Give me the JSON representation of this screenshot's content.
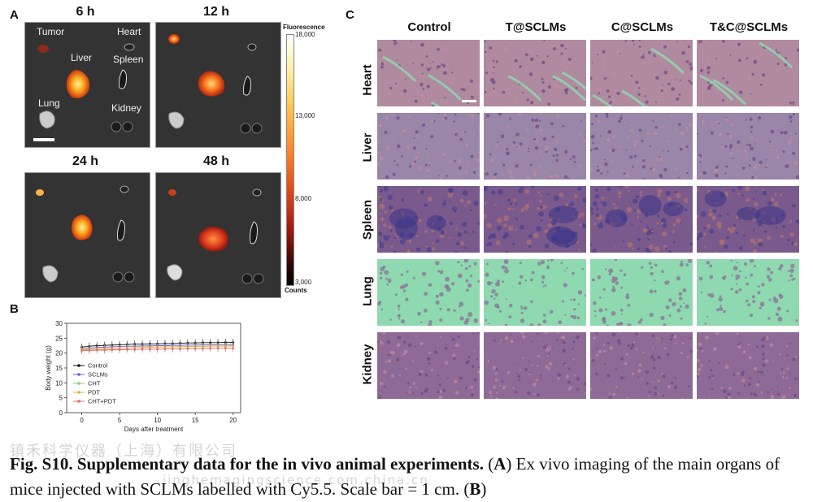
{
  "panel_a": {
    "letter": "A",
    "time_labels": [
      "6 h",
      "12 h",
      "24 h",
      "48 h"
    ],
    "organ_labels": {
      "tumor": "Tumor",
      "heart": "Heart",
      "liver": "Liver",
      "spleen": "Spleen",
      "lung": "Lung",
      "kidney": "Kidney"
    },
    "colorbar": {
      "title": "Fluorescence",
      "ticks": [
        "18,000",
        "13,000",
        "8,000",
        "3,000"
      ],
      "unit": "Counts"
    }
  },
  "panel_b": {
    "letter": "B"
  },
  "panel_c": {
    "letter": "C",
    "columns": [
      "Control",
      "T@SCLMs",
      "C@SCLMs",
      "T&C@SCLMs"
    ],
    "rows": [
      "Heart",
      "Liver",
      "Spleen",
      "Lung",
      "Kidney"
    ]
  },
  "chart_data": {
    "type": "line",
    "xlabel": "Days after treatment",
    "ylabel": "Body weight (g)",
    "xlim": [
      -2,
      21
    ],
    "ylim": [
      0,
      30
    ],
    "xticks": [
      0,
      5,
      10,
      15,
      20
    ],
    "yticks": [
      0,
      5,
      10,
      15,
      20,
      25,
      30
    ],
    "x": [
      0,
      1,
      2,
      3,
      4,
      5,
      6,
      7,
      8,
      9,
      10,
      11,
      12,
      13,
      14,
      15,
      16,
      17,
      18,
      19,
      20
    ],
    "series": [
      {
        "name": "Control",
        "color": "#111111",
        "marker": "square",
        "values": [
          22.0,
          22.3,
          22.5,
          22.6,
          22.7,
          22.8,
          22.9,
          23.0,
          23.0,
          23.1,
          23.1,
          23.2,
          23.2,
          23.3,
          23.4,
          23.4,
          23.5,
          23.5,
          23.5,
          23.6,
          23.6
        ]
      },
      {
        "name": "SCLMs",
        "color": "#6a5acd",
        "marker": "diamond",
        "values": [
          21.5,
          21.7,
          21.9,
          22.0,
          22.1,
          22.2,
          22.3,
          22.3,
          22.4,
          22.4,
          22.5,
          22.5,
          22.6,
          22.6,
          22.7,
          22.7,
          22.8,
          22.8,
          22.8,
          22.9,
          22.9
        ]
      },
      {
        "name": "CHT",
        "color": "#8fce7a",
        "marker": "triangle",
        "values": [
          21.0,
          21.2,
          21.3,
          21.4,
          21.5,
          21.6,
          21.7,
          21.8,
          21.9,
          22.0,
          22.0,
          22.1,
          22.1,
          22.2,
          22.2,
          22.3,
          22.3,
          22.4,
          22.4,
          22.4,
          22.5
        ]
      },
      {
        "name": "PDT",
        "color": "#e8b04a",
        "marker": "triangle",
        "values": [
          21.2,
          21.3,
          21.4,
          21.5,
          21.6,
          21.7,
          21.7,
          21.8,
          21.9,
          21.9,
          22.0,
          22.0,
          22.1,
          22.1,
          22.2,
          22.2,
          22.2,
          22.3,
          22.3,
          22.3,
          22.4
        ]
      },
      {
        "name": "CHT+PDT",
        "color": "#e06a6a",
        "marker": "circle",
        "values": [
          20.8,
          20.9,
          21.0,
          21.0,
          21.1,
          21.1,
          21.2,
          21.2,
          21.3,
          21.3,
          21.3,
          21.4,
          21.4,
          21.4,
          21.5,
          21.5,
          21.5,
          21.6,
          21.6,
          21.6,
          21.6
        ]
      }
    ],
    "legend_placement": "bottom-left",
    "grid": false
  },
  "caption": {
    "bold_lead": "Fig. S10. Supplementary data for the in vivo animal experiments.",
    "part1_letter": "A",
    "part1_text": "Ex vivo imaging of the main organs of mice injected with SCLMs labelled with Cy5.5. Scale bar = 1 cm.",
    "part2_letter": "B"
  },
  "watermark": {
    "line1": "镇禾科学仪器（上海）有限公司",
    "line2": "jinghemagingscience.com.china.cn"
  },
  "colors": {
    "fluo_bg": "#333333",
    "he_tissue": "#8a5a8f",
    "lung_air": "#8fd9b0",
    "spleen_dark": "#4a3f8c"
  }
}
